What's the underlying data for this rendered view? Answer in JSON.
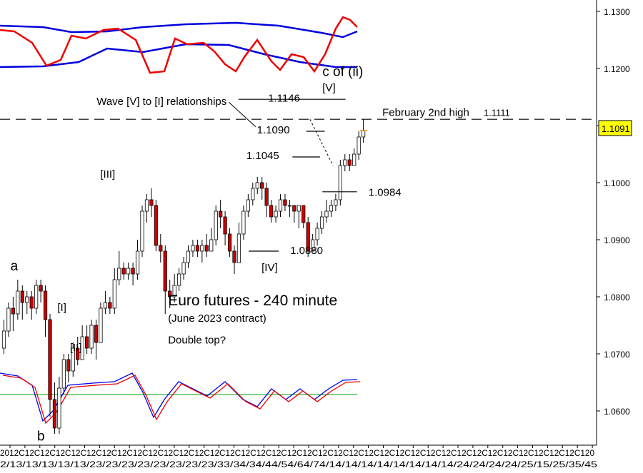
{
  "chart_data": {
    "type": "candlestick",
    "title": "Euro futures - 240 minute",
    "subtitle": "(June 2023 contract)",
    "note": "Double top?",
    "ylim": [
      1.054,
      1.132
    ],
    "y_ticks": [
      "1.1300",
      "1.1200",
      "1.1100",
      "1.1000",
      "1.0900",
      "1.0800",
      "1.0700",
      "1.0600"
    ],
    "x_tick_text": "2/13/13/13/13/13/23/23/23/23/23/23/23/23/33/34/34/44/54/64/74/14/14/14/14/14/14/14/14/24/24/24/24/25/15/25/35/45",
    "x_tick_text_top": "2012C12C12C12C12C12C12C12C12C12C12C12C12C12C12C12C12C12C12C12C12C12C12C12C12C12C12C12C12C12C12C12C12C12C12C12C12C120",
    "current_price": "1.1091",
    "candles": [
      [
        1.071,
        1.074,
        1.07,
        1.076
      ],
      [
        1.074,
        1.078,
        1.073,
        1.079
      ],
      [
        1.078,
        1.077,
        1.074,
        1.08
      ],
      [
        1.077,
        1.081,
        1.076,
        1.083
      ],
      [
        1.081,
        1.079,
        1.076,
        1.082
      ],
      [
        1.079,
        1.08,
        1.077,
        1.081
      ],
      [
        1.08,
        1.078,
        1.076,
        1.081
      ],
      [
        1.078,
        1.082,
        1.077,
        1.083
      ],
      [
        1.082,
        1.081,
        1.079,
        1.083
      ],
      [
        1.081,
        1.076,
        1.073,
        1.082
      ],
      [
        1.076,
        1.062,
        1.059,
        1.077
      ],
      [
        1.062,
        1.057,
        1.056,
        1.065
      ],
      [
        1.057,
        1.064,
        1.056,
        1.066
      ],
      [
        1.064,
        1.069,
        1.063,
        1.07
      ],
      [
        1.069,
        1.067,
        1.065,
        1.07
      ],
      [
        1.067,
        1.071,
        1.066,
        1.072
      ],
      [
        1.071,
        1.069,
        1.068,
        1.073
      ],
      [
        1.069,
        1.073,
        1.069,
        1.075
      ],
      [
        1.073,
        1.071,
        1.07,
        1.075
      ],
      [
        1.071,
        1.075,
        1.07,
        1.076
      ],
      [
        1.075,
        1.072,
        1.069,
        1.076
      ],
      [
        1.072,
        1.078,
        1.072,
        1.079
      ],
      [
        1.078,
        1.079,
        1.077,
        1.081
      ],
      [
        1.079,
        1.078,
        1.077,
        1.08
      ],
      [
        1.078,
        1.083,
        1.077,
        1.085
      ],
      [
        1.083,
        1.085,
        1.082,
        1.088
      ],
      [
        1.085,
        1.084,
        1.083,
        1.086
      ],
      [
        1.084,
        1.085,
        1.083,
        1.086
      ],
      [
        1.085,
        1.084,
        1.082,
        1.086
      ],
      [
        1.084,
        1.088,
        1.083,
        1.09
      ],
      [
        1.088,
        1.095,
        1.087,
        1.096
      ],
      [
        1.095,
        1.097,
        1.093,
        1.098
      ],
      [
        1.097,
        1.096,
        1.094,
        1.099
      ],
      [
        1.096,
        1.089,
        1.088,
        1.097
      ],
      [
        1.089,
        1.088,
        1.086,
        1.091
      ],
      [
        1.088,
        1.081,
        1.077,
        1.089
      ],
      [
        1.081,
        1.08,
        1.078,
        1.083
      ],
      [
        1.08,
        1.082,
        1.079,
        1.084
      ],
      [
        1.082,
        1.084,
        1.081,
        1.085
      ],
      [
        1.084,
        1.086,
        1.083,
        1.087
      ],
      [
        1.086,
        1.088,
        1.085,
        1.089
      ],
      [
        1.088,
        1.089,
        1.087,
        1.09
      ],
      [
        1.089,
        1.088,
        1.087,
        1.09
      ],
      [
        1.088,
        1.089,
        1.086,
        1.09
      ],
      [
        1.089,
        1.088,
        1.087,
        1.091
      ],
      [
        1.088,
        1.09,
        1.088,
        1.092
      ],
      [
        1.09,
        1.095,
        1.089,
        1.096
      ],
      [
        1.095,
        1.094,
        1.092,
        1.097
      ],
      [
        1.094,
        1.091,
        1.089,
        1.095
      ],
      [
        1.091,
        1.088,
        1.087,
        1.092
      ],
      [
        1.088,
        1.086,
        1.084,
        1.089
      ],
      [
        1.086,
        1.091,
        1.086,
        1.093
      ],
      [
        1.091,
        1.095,
        1.09,
        1.096
      ],
      [
        1.095,
        1.097,
        1.094,
        1.098
      ],
      [
        1.097,
        1.099,
        1.096,
        1.1
      ],
      [
        1.099,
        1.1,
        1.098,
        1.101
      ],
      [
        1.1,
        1.099,
        1.097,
        1.101
      ],
      [
        1.099,
        1.096,
        1.094,
        1.1
      ],
      [
        1.096,
        1.094,
        1.093,
        1.097
      ],
      [
        1.094,
        1.095,
        1.093,
        1.096
      ],
      [
        1.095,
        1.097,
        1.094,
        1.098
      ],
      [
        1.097,
        1.096,
        1.095,
        1.098
      ],
      [
        1.096,
        1.096,
        1.094,
        1.097
      ],
      [
        1.096,
        1.095,
        1.093,
        1.096
      ],
      [
        1.095,
        1.096,
        1.092,
        1.096
      ],
      [
        1.096,
        1.093,
        1.092,
        1.096
      ],
      [
        1.093,
        1.088,
        1.087,
        1.094
      ],
      [
        1.088,
        1.09,
        1.088,
        1.091
      ],
      [
        1.09,
        1.092,
        1.089,
        1.093
      ],
      [
        1.092,
        1.094,
        1.091,
        1.095
      ],
      [
        1.094,
        1.095,
        1.093,
        1.097
      ],
      [
        1.095,
        1.096,
        1.094,
        1.097
      ],
      [
        1.096,
        1.097,
        1.095,
        1.098
      ],
      [
        1.097,
        1.103,
        1.096,
        1.104
      ],
      [
        1.103,
        1.104,
        1.102,
        1.105
      ],
      [
        1.104,
        1.103,
        1.102,
        1.105
      ],
      [
        1.103,
        1.105,
        1.103,
        1.106
      ],
      [
        1.105,
        1.108,
        1.104,
        1.109
      ],
      [
        1.108,
        1.1091,
        1.107,
        1.1111
      ]
    ],
    "annotations": [
      {
        "text": "c of (ii)",
        "x": 69.5,
        "y": 1.1187,
        "size": 19
      },
      {
        "text": "[V]",
        "x": 69.5,
        "y": 1.116,
        "size": 15
      },
      {
        "text": "Wave [V] to [I] relationships",
        "x": 20.5,
        "y": 1.1136,
        "size": 15
      },
      {
        "text": "1.1146",
        "x": 57.7,
        "y": 1.1142,
        "size": 15
      },
      {
        "text": "February 2nd high",
        "x": 82.5,
        "y": 1.1117,
        "size": 15
      },
      {
        "text": "1.1111",
        "x": 104.5,
        "y": 1.1117,
        "size": 13
      },
      {
        "text": "1.1090",
        "x": 55.3,
        "y": 1.1086,
        "size": 15
      },
      {
        "text": "1.1045",
        "x": 53.0,
        "y": 1.1041,
        "size": 15
      },
      {
        "text": "[III]",
        "x": 21.3,
        "y": 1.1009,
        "size": 15
      },
      {
        "text": "1.0984",
        "x": 79.5,
        "y": 1.0977,
        "size": 15
      },
      {
        "text": "1.0880",
        "x": 62.5,
        "y": 1.0875,
        "size": 15
      },
      {
        "text": "[IV]",
        "x": 56.3,
        "y": 1.0845,
        "size": 15
      },
      {
        "text": "a",
        "x": 1.8,
        "y": 1.0846,
        "size": 19
      },
      {
        "text": "[I]",
        "x": 12.0,
        "y": 1.0775,
        "size": 15
      },
      {
        "text": "[II]",
        "x": 14.7,
        "y": 1.0705,
        "size": 15
      },
      {
        "text": "b",
        "x": 7.6,
        "y": 1.0548,
        "size": 19
      },
      {
        "text": "Euro futures - 240 minute",
        "x": 36.0,
        "y": 1.0785,
        "size": 21
      },
      {
        "text": "(June 2023 contract)",
        "x": 36.0,
        "y": 1.0756,
        "size": 15
      },
      {
        "text": "Double top?",
        "x": 36.0,
        "y": 1.0718,
        "size": 15
      }
    ],
    "hlines": [
      {
        "y": 1.1146,
        "x1": 51.3,
        "x2": 74.5
      },
      {
        "y": 1.109,
        "x1": 66.0,
        "x2": 70.0
      },
      {
        "y": 1.1045,
        "x1": 63.0,
        "x2": 69.0
      },
      {
        "y": 1.0984,
        "x1": 69.5,
        "x2": 77.0
      },
      {
        "y": 1.088,
        "x1": 53.5,
        "x2": 60.0
      }
    ],
    "dashed_level": 1.1111,
    "connectors": [
      {
        "x1": 49.2,
        "y1": 1.1141,
        "x2": 55.0,
        "y2": 1.1098
      },
      {
        "x1": 66.8,
        "y1": 1.1111,
        "x2": 71.8,
        "y2": 1.103
      }
    ]
  }
}
